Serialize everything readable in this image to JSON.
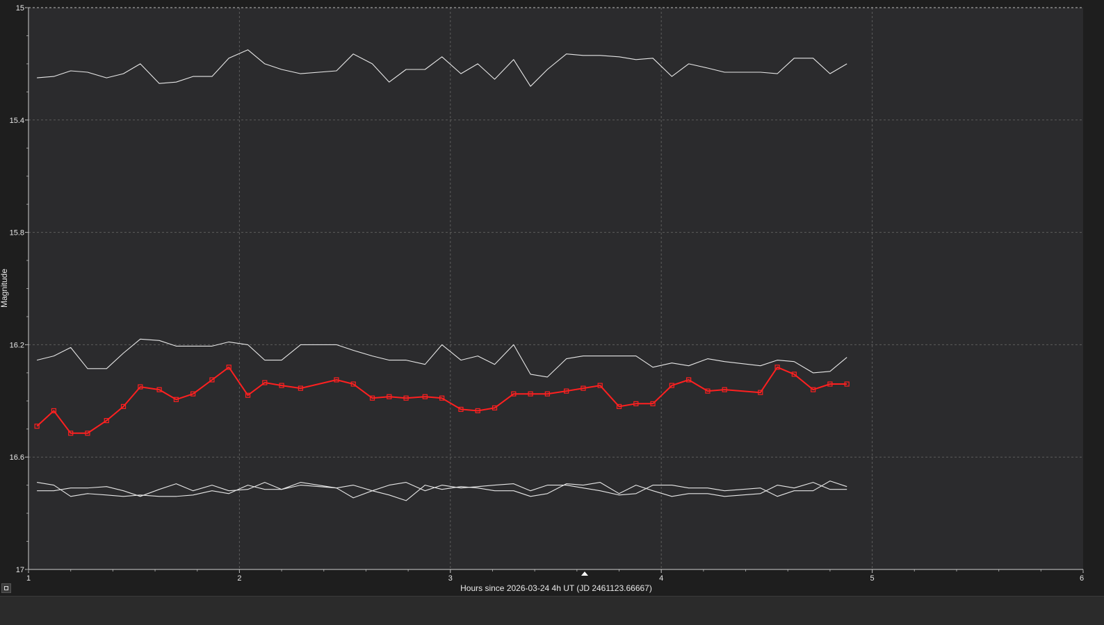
{
  "chart_data": {
    "type": "line",
    "xlabel": "Hours since 2026-03-24 4h UT (JD 2461123.66667)",
    "ylabel": "Magnitude",
    "xlim": [
      1,
      6
    ],
    "ylim": [
      17,
      15
    ],
    "y_inverted": true,
    "x_ticks": [
      "1",
      "2",
      "3",
      "4",
      "5",
      "6"
    ],
    "y_ticks": [
      "15",
      "15.4",
      "15.8",
      "16.2",
      "16.6",
      "17"
    ],
    "grid": true,
    "x": [
      1.04,
      1.12,
      1.2,
      1.28,
      1.37,
      1.45,
      1.53,
      1.62,
      1.7,
      1.78,
      1.87,
      1.95,
      2.04,
      2.12,
      2.2,
      2.29,
      2.46,
      2.54,
      2.63,
      2.71,
      2.79,
      2.88,
      2.96,
      3.05,
      3.13,
      3.21,
      3.3,
      3.38,
      3.46,
      3.55,
      3.63,
      3.71,
      3.8,
      3.88,
      3.96,
      4.05,
      4.13,
      4.22,
      4.3,
      4.47,
      4.55,
      4.63,
      4.72,
      4.8,
      4.88
    ],
    "series": [
      {
        "color": "#e8e8e8",
        "marker": "none",
        "values": [
          15.25,
          15.245,
          15.225,
          15.23,
          15.25,
          15.235,
          15.2,
          15.27,
          15.265,
          15.245,
          15.245,
          15.18,
          15.15,
          15.2,
          15.22,
          15.235,
          15.225,
          15.165,
          15.2,
          15.265,
          15.22,
          15.22,
          15.175,
          15.235,
          15.2,
          15.255,
          15.185,
          15.28,
          15.22,
          15.165,
          15.17,
          15.17,
          15.175,
          15.185,
          15.18,
          15.245,
          15.2,
          15.215,
          15.23,
          15.23,
          15.235,
          15.18,
          15.18,
          15.235,
          15.2
        ]
      },
      {
        "color": "#e8e8e8",
        "marker": "none",
        "values": [
          16.255,
          16.24,
          16.21,
          16.285,
          16.285,
          16.23,
          16.18,
          16.185,
          16.205,
          16.205,
          16.205,
          16.19,
          16.2,
          16.255,
          16.255,
          16.2,
          16.2,
          16.22,
          16.24,
          16.255,
          16.255,
          16.27,
          16.2,
          16.255,
          16.24,
          16.27,
          16.2,
          16.305,
          16.315,
          16.25,
          16.24,
          16.24,
          16.24,
          16.24,
          16.28,
          16.265,
          16.275,
          16.25,
          16.26,
          16.275,
          16.255,
          16.26,
          16.3,
          16.295,
          16.245
        ]
      },
      {
        "color": "#ff2020",
        "marker": "square",
        "values": [
          16.49,
          16.435,
          16.515,
          16.515,
          16.47,
          16.42,
          16.35,
          16.36,
          16.395,
          16.375,
          16.325,
          16.28,
          16.38,
          16.335,
          16.345,
          16.355,
          16.325,
          16.34,
          16.39,
          16.385,
          16.39,
          16.385,
          16.39,
          16.43,
          16.435,
          16.425,
          16.375,
          16.375,
          16.375,
          16.365,
          16.355,
          16.345,
          16.42,
          16.41,
          16.41,
          16.345,
          16.325,
          16.365,
          16.36,
          16.37,
          16.28,
          16.305,
          16.36,
          16.34,
          16.34
        ]
      },
      {
        "color": "#e8e8e8",
        "marker": "none",
        "values": [
          16.72,
          16.72,
          16.71,
          16.71,
          16.705,
          16.72,
          16.74,
          16.715,
          16.695,
          16.72,
          16.7,
          16.72,
          16.715,
          16.69,
          16.715,
          16.7,
          16.71,
          16.745,
          16.72,
          16.7,
          16.69,
          16.72,
          16.7,
          16.71,
          16.705,
          16.7,
          16.695,
          16.72,
          16.7,
          16.7,
          16.71,
          16.72,
          16.735,
          16.73,
          16.7,
          16.7,
          16.71,
          16.71,
          16.72,
          16.71,
          16.74,
          16.72,
          16.72,
          16.685,
          16.705
        ]
      },
      {
        "color": "#e8e8e8",
        "marker": "none",
        "values": [
          16.69,
          16.7,
          16.74,
          16.73,
          16.735,
          16.74,
          16.735,
          16.74,
          16.74,
          16.735,
          16.72,
          16.73,
          16.7,
          16.715,
          16.715,
          16.69,
          16.71,
          16.7,
          16.72,
          16.735,
          16.755,
          16.7,
          16.715,
          16.705,
          16.71,
          16.72,
          16.72,
          16.74,
          16.73,
          16.695,
          16.7,
          16.69,
          16.73,
          16.7,
          16.72,
          16.74,
          16.73,
          16.73,
          16.74,
          16.73,
          16.7,
          16.71,
          16.69,
          16.715,
          16.715
        ]
      }
    ]
  }
}
